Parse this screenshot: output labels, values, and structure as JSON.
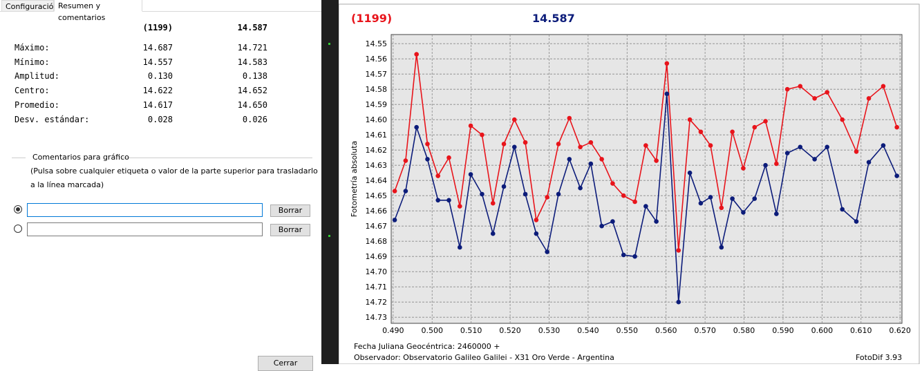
{
  "tabs": [
    "Configuración",
    "Resumen y comentarios"
  ],
  "stats": {
    "header": [
      "(1199)",
      "14.587"
    ],
    "rows": [
      {
        "label": "Máximo:",
        "values": [
          "14.687",
          "14.721"
        ]
      },
      {
        "label": "Mínimo:",
        "values": [
          "14.557",
          "14.583"
        ]
      },
      {
        "label": "Amplitud:",
        "values": [
          "0.130",
          "0.138"
        ]
      },
      {
        "label": "Centro:",
        "values": [
          "14.622",
          "14.652"
        ]
      },
      {
        "label": "Promedio:",
        "values": [
          "14.617",
          "14.650"
        ]
      },
      {
        "label": "Desv. estándar:",
        "values": [
          "0.028",
          "0.026"
        ]
      }
    ]
  },
  "comments": {
    "title": "Comentarios para gráfico",
    "hint": [
      "(Pulsa sobre cualquier etiqueta o valor de la parte superior para trasladarlo",
      "a la línea marcada)"
    ],
    "buttons": [
      "Borrar",
      "Borrar"
    ]
  },
  "close": "Cerrar",
  "chart_data": {
    "type": "line",
    "y_label": "Fotometría absoluta",
    "footer": [
      "Fecha Juliana Geocéntrica: 2460000 +",
      "Observador: Observatorio Galileo Galilei - X31 Oro Verde - Argentina"
    ],
    "credit": "FotoDif 3.93",
    "y_inverted": true,
    "grid": true,
    "x": [
      0.4904,
      0.4932,
      0.496,
      0.4988,
      0.5015,
      0.5043,
      0.5071,
      0.5099,
      0.5128,
      0.5156,
      0.5184,
      0.5211,
      0.5239,
      0.5267,
      0.5295,
      0.5324,
      0.5352,
      0.538,
      0.5407,
      0.5435,
      0.5463,
      0.5491,
      0.552,
      0.5548,
      0.5575,
      0.5602,
      0.5632,
      0.5661,
      0.5689,
      0.5714,
      0.5742,
      0.577,
      0.5798,
      0.5827,
      0.5855,
      0.5883,
      0.5911,
      0.5944,
      0.5981,
      0.6013,
      0.6052,
      0.6088,
      0.612,
      0.6157,
      0.6192
    ],
    "series": [
      {
        "name": "(1199)",
        "color": "#e8141b",
        "values": [
          14.647,
          14.627,
          14.557,
          14.616,
          14.637,
          14.625,
          14.657,
          14.604,
          14.61,
          14.655,
          14.616,
          14.6,
          14.615,
          14.666,
          14.651,
          14.616,
          14.599,
          14.618,
          14.615,
          14.626,
          14.642,
          14.65,
          14.654,
          14.617,
          14.627,
          14.563,
          14.686,
          14.6,
          14.608,
          14.617,
          14.658,
          14.608,
          14.632,
          14.605,
          14.601,
          14.629,
          14.58,
          14.578,
          14.586,
          14.582,
          14.6,
          14.621,
          14.586,
          14.578,
          14.605
        ]
      },
      {
        "name": "14.587",
        "color": "#0c1c7a",
        "values": [
          14.666,
          14.647,
          14.605,
          14.626,
          14.653,
          14.653,
          14.684,
          14.636,
          14.649,
          14.675,
          14.644,
          14.618,
          14.649,
          14.675,
          14.687,
          14.649,
          14.626,
          14.645,
          14.629,
          14.67,
          14.667,
          14.689,
          14.69,
          14.657,
          14.667,
          14.583,
          14.72,
          14.635,
          14.655,
          14.651,
          14.684,
          14.652,
          14.661,
          14.652,
          14.63,
          14.662,
          14.622,
          14.618,
          14.626,
          14.618,
          14.659,
          14.667,
          14.628,
          14.617,
          14.637
        ]
      }
    ],
    "xlim": [
      0.4895,
      0.6205
    ],
    "xticks": [
      {
        "value": 0.49,
        "label": "0.490"
      },
      {
        "value": 0.5,
        "label": "0.500"
      },
      {
        "value": 0.51,
        "label": "0.510"
      },
      {
        "value": 0.52,
        "label": "0.520"
      },
      {
        "value": 0.53,
        "label": "0.530"
      },
      {
        "value": 0.54,
        "label": "0.540"
      },
      {
        "value": 0.55,
        "label": "0.550"
      },
      {
        "value": 0.56,
        "label": "0.560"
      },
      {
        "value": 0.57,
        "label": "0.570"
      },
      {
        "value": 0.58,
        "label": "0.580"
      },
      {
        "value": 0.59,
        "label": "0.590"
      },
      {
        "value": 0.6,
        "label": "0.600"
      },
      {
        "value": 0.61,
        "label": "0.610"
      },
      {
        "value": 0.62,
        "label": "0.620"
      }
    ],
    "ylim": [
      14.544,
      14.734
    ],
    "yticks": [
      14.55,
      14.56,
      14.57,
      14.58,
      14.59,
      {
        "value": 14.6,
        "label": "14.60"
      },
      14.61,
      14.62,
      14.63,
      14.64,
      14.65,
      14.66,
      14.67,
      14.68,
      14.69,
      {
        "value": 14.7,
        "label": "14.70"
      },
      14.71,
      14.72,
      14.73
    ]
  }
}
